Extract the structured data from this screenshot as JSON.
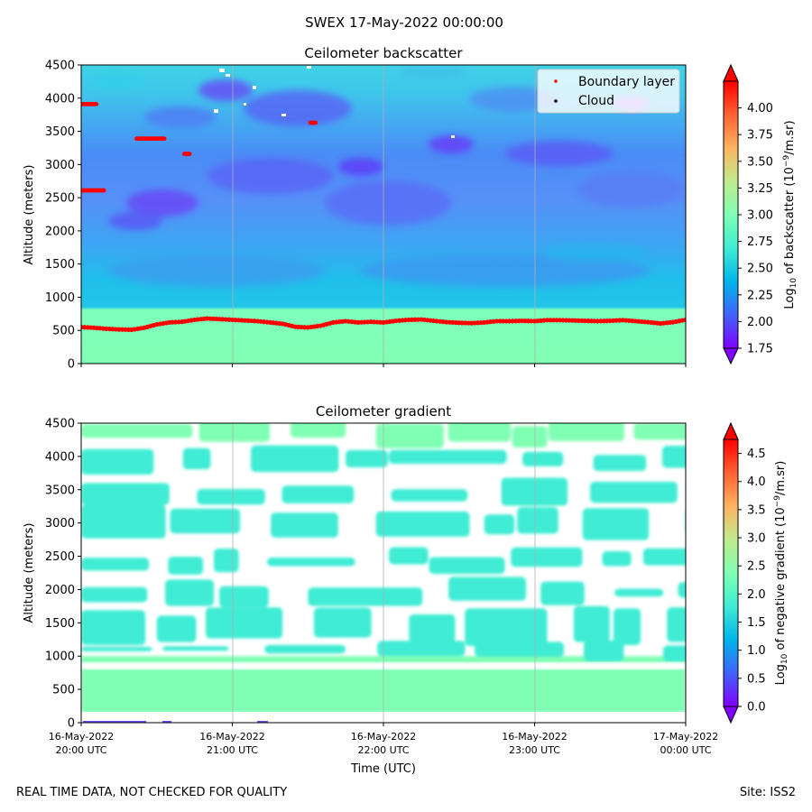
{
  "suptitle": "SWEX 17-May-2022 00:00:00",
  "footer": {
    "left": "REAL TIME DATA, NOT CHECKED FOR QUALITY",
    "right": "Site: ISS2"
  },
  "chart_data": [
    {
      "type": "heatmap",
      "title": "Ceilometer backscatter",
      "ylabel": "Altitude (meters)",
      "ylim": [
        0,
        4500
      ],
      "yticks": [
        0,
        500,
        1000,
        1500,
        2000,
        2500,
        3000,
        3500,
        4000,
        4500
      ],
      "xlim": [
        "2022-05-16 20:00",
        "2022-05-17 00:00"
      ],
      "grid": "vertical at each hour",
      "legend": {
        "placement": "upper right",
        "entries": [
          {
            "label": "Boundary layer",
            "color": "#ff0000"
          },
          {
            "label": "Cloud",
            "color": "#000000"
          }
        ]
      },
      "colorbar": {
        "label_prefix": "Log",
        "label_sub": "10",
        "label_mid": " of backscatter (10",
        "label_sup": "−9",
        "label_suffix": "/m.sr)",
        "min": 1.75,
        "max": 4.25,
        "ticks": [
          "1.75",
          "2.00",
          "2.25",
          "2.50",
          "2.75",
          "3.00",
          "3.25",
          "3.50",
          "3.75",
          "4.00"
        ],
        "extend": "both",
        "colormap": "rainbow"
      },
      "boundary_layer": [
        [
          0,
          550
        ],
        [
          5,
          540
        ],
        [
          10,
          525
        ],
        [
          15,
          515
        ],
        [
          20,
          510
        ],
        [
          25,
          540
        ],
        [
          30,
          590
        ],
        [
          35,
          620
        ],
        [
          40,
          630
        ],
        [
          45,
          660
        ],
        [
          50,
          680
        ],
        [
          55,
          670
        ],
        [
          60,
          660
        ],
        [
          65,
          650
        ],
        [
          70,
          640
        ],
        [
          75,
          620
        ],
        [
          80,
          600
        ],
        [
          85,
          555
        ],
        [
          90,
          545
        ],
        [
          95,
          570
        ],
        [
          100,
          620
        ],
        [
          105,
          640
        ],
        [
          110,
          620
        ],
        [
          115,
          630
        ],
        [
          120,
          620
        ],
        [
          125,
          645
        ],
        [
          130,
          660
        ],
        [
          135,
          665
        ],
        [
          140,
          645
        ],
        [
          145,
          625
        ],
        [
          150,
          615
        ],
        [
          155,
          610
        ],
        [
          160,
          620
        ],
        [
          165,
          640
        ],
        [
          170,
          640
        ],
        [
          175,
          645
        ],
        [
          180,
          640
        ],
        [
          185,
          655
        ],
        [
          190,
          655
        ],
        [
          195,
          650
        ],
        [
          200,
          645
        ],
        [
          205,
          640
        ],
        [
          210,
          645
        ],
        [
          215,
          655
        ],
        [
          220,
          640
        ],
        [
          225,
          625
        ],
        [
          230,
          605
        ],
        [
          235,
          625
        ],
        [
          240,
          660
        ],
        [
          245,
          650
        ],
        [
          250,
          635
        ],
        [
          255,
          625
        ],
        [
          260,
          620
        ],
        [
          265,
          625
        ],
        [
          270,
          620
        ],
        [
          275,
          615
        ]
      ],
      "boundary_layer_elevated": [
        {
          "minutes": [
            0,
            6
          ],
          "altitude": 3910
        },
        {
          "minutes": [
            0,
            9
          ],
          "altitude": 2610
        },
        {
          "minutes": [
            22,
            33
          ],
          "altitude": 3390
        },
        {
          "minutes": [
            41,
            43
          ],
          "altitude": 3160
        },
        {
          "minutes": [
            91,
            93
          ],
          "altitude": 3630
        }
      ]
    },
    {
      "type": "heatmap",
      "title": "Ceilometer gradient",
      "ylabel": "Altitude (meters)",
      "xlabel": "Time (UTC)",
      "ylim": [
        0,
        4500
      ],
      "yticks": [
        0,
        500,
        1000,
        1500,
        2000,
        2500,
        3000,
        3500,
        4000,
        4500
      ],
      "xticks": [
        {
          "date": "16-May-2022",
          "time": "20:00 UTC"
        },
        {
          "date": "16-May-2022",
          "time": "21:00 UTC"
        },
        {
          "date": "16-May-2022",
          "time": "22:00 UTC"
        },
        {
          "date": "16-May-2022",
          "time": "23:00 UTC"
        },
        {
          "date": "17-May-2022",
          "time": "00:00 UTC"
        }
      ],
      "grid": "vertical at each hour",
      "colorbar": {
        "label_prefix": "Log",
        "label_sub": "10",
        "label_mid": " of negative gradient (10",
        "label_sup": "−9",
        "label_suffix": "/m.sr)",
        "min": 0.0,
        "max": 4.75,
        "ticks": [
          "0.0",
          "0.5",
          "1.0",
          "1.5",
          "2.0",
          "2.5",
          "3.0",
          "3.5",
          "4.0",
          "4.5"
        ],
        "extend": "both",
        "colormap": "rainbow"
      },
      "layers": [
        {
          "altitude": [
            150,
            1000
          ],
          "level": 2.3
        },
        {
          "altitude": [
            1000,
            1150
          ],
          "level": 1.7
        },
        {
          "altitude": [
            1200,
            1700
          ],
          "level": 1.6
        },
        {
          "altitude": [
            1800,
            2100
          ],
          "level": 1.7
        },
        {
          "altitude": [
            2300,
            2550
          ],
          "level": 1.8
        },
        {
          "altitude": [
            2750,
            3200
          ],
          "level": 1.9
        },
        {
          "altitude": [
            3350,
            3600
          ],
          "level": 1.9
        },
        {
          "altitude": [
            3800,
            4100
          ],
          "level": 2.0
        },
        {
          "altitude": [
            4200,
            4500
          ],
          "level": 2.1
        }
      ]
    }
  ]
}
